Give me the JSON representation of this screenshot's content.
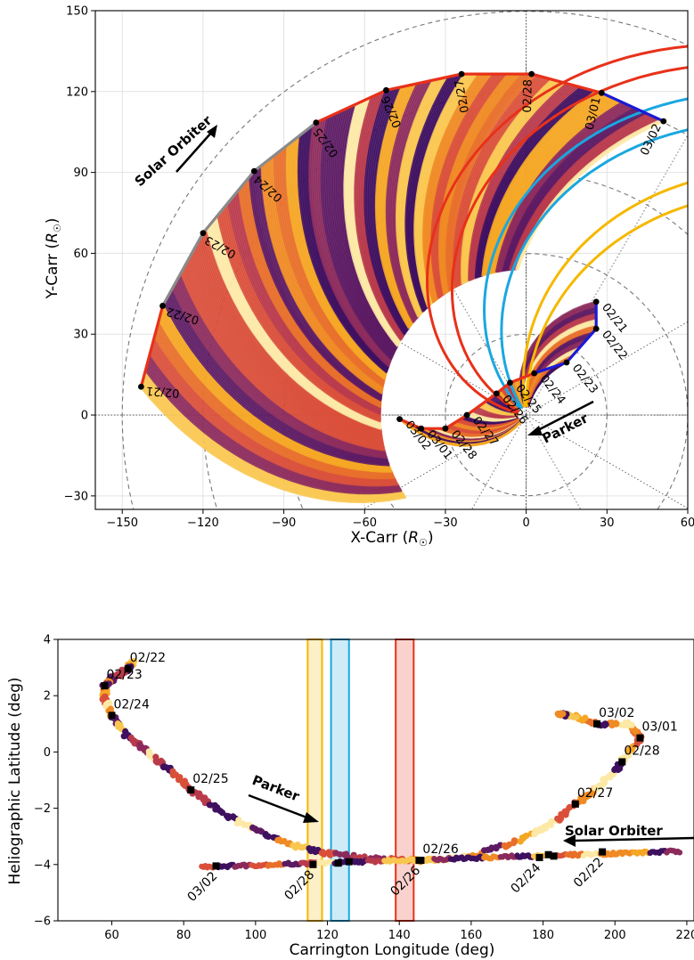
{
  "chart_data": [
    {
      "type": "scatter",
      "panel": "top",
      "xlabel": "X-Carr (R☉)",
      "ylabel": "Y-Carr (R☉)",
      "xlim": [
        -160,
        60
      ],
      "ylim": [
        -35,
        150
      ],
      "xticks": [
        -150,
        -120,
        -90,
        -60,
        -30,
        0,
        30,
        60
      ],
      "yticks": [
        -30,
        0,
        30,
        60,
        90,
        120,
        150
      ],
      "grid": true,
      "orbits": [
        {
          "name": "Solar Orbiter",
          "points": [
            {
              "label": "02/21",
              "x": -143,
              "y": 10.5
            },
            {
              "label": "02/22",
              "x": -135,
              "y": 40.5
            },
            {
              "label": "02/23",
              "x": -120,
              "y": 67.5
            },
            {
              "label": "02/24",
              "x": -101,
              "y": 90.5
            },
            {
              "label": "02/25",
              "x": -78,
              "y": 108.5
            },
            {
              "label": "02/26",
              "x": -52,
              "y": 120.5
            },
            {
              "label": "02/27",
              "x": -24,
              "y": 126.5
            },
            {
              "label": "02/28",
              "x": 2,
              "y": 126.5
            },
            {
              "label": "03/01",
              "x": 28,
              "y": 119.5
            },
            {
              "label": "03/02",
              "x": 51,
              "y": 109
            }
          ]
        },
        {
          "name": "Parker",
          "points": [
            {
              "label": "02/21",
              "x": 26,
              "y": 42
            },
            {
              "label": "02/22",
              "x": 26,
              "y": 32
            },
            {
              "label": "02/23",
              "x": 15,
              "y": 19.5
            },
            {
              "label": "02/24",
              "x": 3,
              "y": 15.5
            },
            {
              "label": "02/25",
              "x": -6,
              "y": 12
            },
            {
              "label": "02/26",
              "x": -11,
              "y": 8
            },
            {
              "label": "02/27",
              "x": -22,
              "y": 0
            },
            {
              "label": "02/28",
              "x": -30,
              "y": -5
            },
            {
              "label": "03/01",
              "x": -39,
              "y": -5
            },
            {
              "label": "03/02",
              "x": -47,
              "y": -1.5
            }
          ]
        }
      ],
      "annotations": [
        "Solar Orbiter",
        "Parker"
      ]
    },
    {
      "type": "scatter",
      "panel": "bottom",
      "xlabel": "Carrington Longitude (deg)",
      "ylabel": "Heliographic Latitude (deg)",
      "xlim": [
        45,
        222
      ],
      "ylim": [
        -6,
        4
      ],
      "xticks": [
        60,
        80,
        100,
        120,
        140,
        160,
        180,
        200,
        220
      ],
      "yticks": [
        -6,
        -4,
        -2,
        0,
        2,
        4
      ],
      "grid": false,
      "bands": [
        {
          "color": "#f5b800",
          "x0": 114.5,
          "x1": 118.5
        },
        {
          "color": "#1aa7e0",
          "x0": 121,
          "x1": 126
        },
        {
          "color": "#e8311a",
          "x0": 139,
          "x1": 144
        }
      ],
      "markers": [
        {
          "label": "02/22",
          "x": 64.5,
          "y": 2.95
        },
        {
          "label": "02/23",
          "x": 58,
          "y": 2.35
        },
        {
          "label": "02/24",
          "x": 60,
          "y": 1.3
        },
        {
          "label": "02/25",
          "x": 82,
          "y": -1.35
        },
        {
          "label": "02/26",
          "x": 146,
          "y": -3.85
        },
        {
          "label": "02/27",
          "x": 189,
          "y": -1.85
        },
        {
          "label": "02/28",
          "x": 202,
          "y": -0.35
        },
        {
          "label": "03/01",
          "x": 207,
          "y": 0.5
        },
        {
          "label": "03/02",
          "x": 195,
          "y": 1.0
        }
      ],
      "solo_markers": [
        {
          "label": "03/02",
          "x": 89,
          "y": -4.05
        },
        {
          "label": "02/28",
          "x": 116,
          "y": -4.0
        },
        {
          "label": "",
          "x": 123,
          "y": -3.95
        },
        {
          "label": "",
          "x": 126,
          "y": -3.9
        },
        {
          "label": "02/26",
          "x": 145.5,
          "y": -3.85
        },
        {
          "label": "02/24",
          "x": 179,
          "y": -3.75
        },
        {
          "label": "",
          "x": 181.5,
          "y": -3.65
        },
        {
          "label": "",
          "x": 183,
          "y": -3.7
        },
        {
          "label": "02/22",
          "x": 196.5,
          "y": -3.55
        }
      ],
      "annotations": [
        "Parker",
        "Solar Orbiter"
      ]
    }
  ],
  "top_axis": {
    "ylabel": "Y-Carr (",
    "xlabel": "X-Carr (",
    "unit": "R",
    "close": ")",
    "sun": "☉"
  },
  "bottom_axis": {
    "ylabel": "Heliographic Latitude (deg)",
    "xlabel": "Carrington Longitude (deg)"
  },
  "labels": {
    "solo": "Solar Orbiter",
    "parker": "Parker"
  },
  "colors": {
    "solo_track": "#e8311a",
    "solo_track_grey": "#8a8a8a",
    "parker_track_blue": "#1a1ad8",
    "parker_track_red": "#e8311a",
    "cyan_line": "#1aa7e0",
    "red_line": "#e8311a",
    "yellow_line": "#f5b800"
  }
}
